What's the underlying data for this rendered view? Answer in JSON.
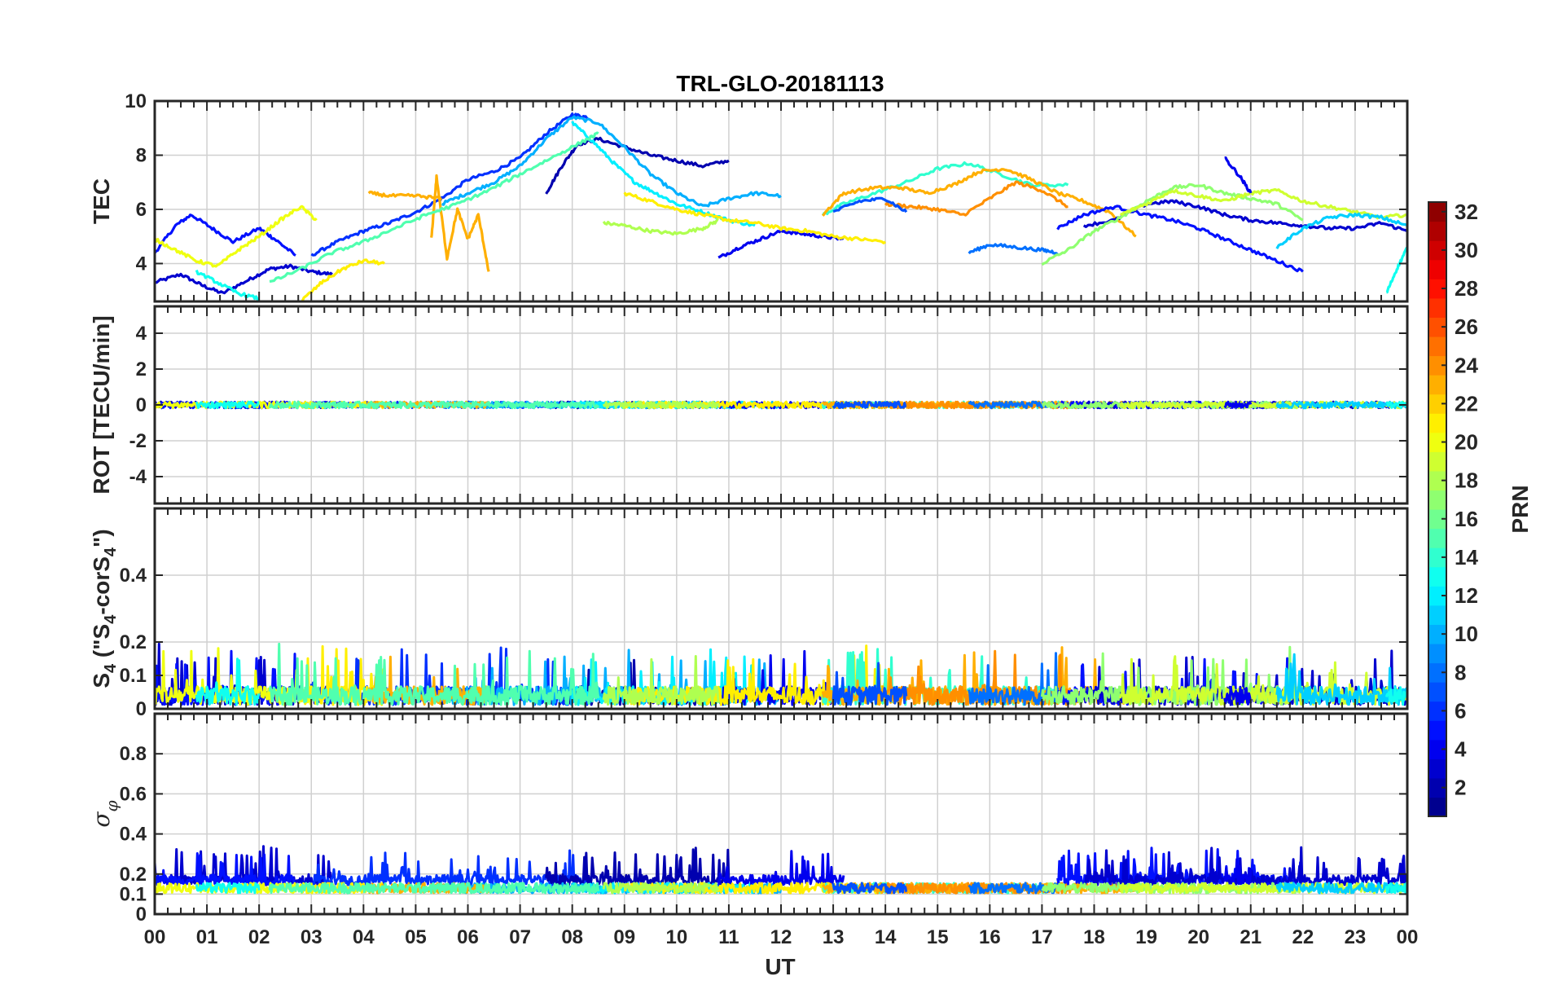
{
  "chart_data": {
    "type": "line",
    "title": "TRL-GLO-20181113",
    "xlabel": "UT",
    "x_ticks": [
      "00",
      "01",
      "02",
      "03",
      "04",
      "05",
      "06",
      "07",
      "08",
      "09",
      "10",
      "11",
      "12",
      "13",
      "14",
      "15",
      "16",
      "17",
      "18",
      "19",
      "20",
      "21",
      "22",
      "23",
      "00"
    ],
    "xlim": [
      0,
      24
    ],
    "grid": true,
    "colorbar": {
      "label": "PRN",
      "colormap": "jet",
      "range": [
        1,
        32
      ],
      "ticks": [
        "2",
        "4",
        "6",
        "8",
        "10",
        "12",
        "14",
        "16",
        "18",
        "20",
        "22",
        "24",
        "26",
        "28",
        "30",
        "32"
      ]
    },
    "panels": [
      {
        "ylabel": "TEC",
        "ylim": [
          2.6,
          10
        ],
        "y_ticks": [
          "4",
          "6",
          "8",
          "10"
        ],
        "series": [
          {
            "prn": 3,
            "x": [
              0,
              0.5,
              0.9,
              1.3,
              1.8,
              2.2,
              2.6,
              3.0,
              3.4
            ],
            "values": [
              3.3,
              3.6,
              3.2,
              2.9,
              3.4,
              3.8,
              3.9,
              3.7,
              3.6
            ]
          },
          {
            "prn": 5,
            "x": [
              0,
              0.4,
              0.7,
              1.1,
              1.5,
              2.0,
              2.3,
              2.7
            ],
            "values": [
              4.4,
              5.4,
              5.8,
              5.3,
              4.8,
              5.3,
              4.9,
              4.3
            ]
          },
          {
            "prn": 6,
            "x": [
              3.0,
              3.5,
              4.0,
              4.5,
              5.0,
              5.5,
              6.0,
              6.5,
              7.0,
              7.5,
              8.0,
              8.3
            ],
            "values": [
              4.3,
              4.8,
              5.2,
              5.5,
              5.9,
              6.4,
              7.1,
              7.4,
              7.9,
              8.8,
              9.5,
              9.4
            ]
          },
          {
            "prn": 2,
            "x": [
              7.5,
              7.8,
              8.1,
              8.5,
              9.0,
              9.5,
              10.0,
              10.5,
              11.0
            ],
            "values": [
              6.6,
              7.6,
              8.4,
              8.6,
              8.3,
              8.0,
              7.8,
              7.6,
              7.8
            ]
          },
          {
            "prn": 10,
            "x": [
              5.5,
              6.0,
              6.5,
              7.0,
              7.5,
              8.0,
              8.5,
              9.0,
              9.5,
              10.0,
              10.5,
              11.0,
              11.5,
              12.0
            ],
            "values": [
              6.2,
              6.6,
              7.0,
              7.6,
              8.6,
              9.4,
              9.2,
              8.3,
              7.3,
              6.6,
              6.1,
              6.4,
              6.6,
              6.5
            ]
          },
          {
            "prn": 12,
            "x": [
              8.0,
              8.4,
              8.8,
              9.2,
              9.6,
              10.0,
              10.5,
              11.0,
              11.5
            ],
            "values": [
              9.2,
              8.5,
              7.7,
              7.0,
              6.6,
              6.2,
              5.9,
              5.6,
              5.4
            ]
          },
          {
            "prn": 4,
            "x": [
              10.8,
              11.2,
              11.6,
              12.0,
              12.4,
              12.8,
              13.2
            ],
            "values": [
              4.2,
              4.6,
              4.9,
              5.2,
              5.1,
              5.0,
              4.9
            ]
          },
          {
            "prn": 21,
            "x": [
              9.0,
              9.5,
              10.0,
              10.5,
              11.0,
              11.5,
              12.0,
              12.5,
              13.0,
              13.5,
              14.0
            ],
            "values": [
              6.6,
              6.3,
              6.0,
              5.8,
              5.6,
              5.5,
              5.3,
              5.2,
              5.0,
              4.9,
              4.8
            ]
          },
          {
            "prn": 18,
            "x": [
              8.6,
              9.0,
              9.5,
              10.0,
              10.5,
              10.8
            ],
            "values": [
              5.5,
              5.4,
              5.2,
              5.1,
              5.3,
              5.6
            ]
          },
          {
            "prn": 14,
            "x": [
              12.8,
              13.2,
              13.8,
              14.4,
              15.0,
              15.6,
              16.2,
              16.8,
              17.5
            ],
            "values": [
              5.8,
              6.2,
              6.6,
              7.0,
              7.5,
              7.7,
              7.3,
              6.9,
              6.9
            ]
          },
          {
            "prn": 23,
            "x": [
              12.8,
              13.2,
              13.8,
              14.3,
              14.8,
              15.3,
              15.8,
              16.3,
              16.8,
              17.3,
              17.8,
              18.3,
              18.8
            ],
            "values": [
              5.8,
              6.6,
              6.8,
              6.8,
              6.6,
              6.9,
              7.4,
              7.5,
              7.1,
              6.6,
              6.3,
              5.9,
              5.0
            ]
          },
          {
            "prn": 24,
            "x": [
              14.0,
              14.5,
              15.0,
              15.5,
              16.0,
              16.5,
              17.0,
              17.5
            ],
            "values": [
              6.2,
              6.1,
              6.0,
              5.8,
              6.4,
              7.0,
              6.7,
              6.1
            ]
          },
          {
            "prn": 7,
            "x": [
              13.0,
              13.5,
              14.0,
              14.4
            ],
            "values": [
              5.9,
              6.3,
              6.4,
              5.9
            ]
          },
          {
            "prn": 8,
            "x": [
              15.6,
              16.0,
              16.5,
              17.0,
              17.3
            ],
            "values": [
              4.4,
              4.7,
              4.6,
              4.5,
              4.4
            ]
          },
          {
            "prn": 5,
            "x": [
              17.3,
              17.8,
              18.4,
              19.0,
              19.5,
              20.0,
              20.5,
              21.0,
              21.5,
              22.0
            ],
            "values": [
              5.3,
              5.8,
              6.1,
              5.8,
              5.6,
              5.3,
              4.9,
              4.5,
              4.1,
              3.7
            ]
          },
          {
            "prn": 3,
            "x": [
              17.8,
              18.4,
              19.0,
              19.5,
              20.0,
              20.5,
              21.0,
              21.5,
              22.0,
              22.5,
              23.0,
              23.5,
              24.0
            ],
            "values": [
              5.4,
              5.6,
              6.2,
              6.3,
              6.1,
              5.8,
              5.6,
              5.5,
              5.4,
              5.3,
              5.3,
              5.5,
              5.2
            ]
          },
          {
            "prn": 17,
            "x": [
              17.0,
              17.5,
              18.0,
              18.5,
              19.0,
              19.5,
              20.0,
              20.5,
              21.0,
              21.5,
              22.0
            ],
            "values": [
              4.0,
              4.5,
              5.2,
              5.7,
              6.3,
              6.8,
              6.9,
              6.6,
              6.4,
              6.2,
              5.6
            ]
          },
          {
            "prn": 19,
            "x": [
              18.5,
              19.0,
              19.5,
              20.0,
              20.5,
              21.0,
              21.5,
              22.0,
              22.5,
              23.0,
              23.5,
              24.0
            ],
            "values": [
              5.8,
              6.2,
              6.7,
              6.5,
              6.3,
              6.6,
              6.7,
              6.3,
              6.1,
              5.9,
              5.7,
              5.8
            ]
          },
          {
            "prn": 4,
            "x": [
              20.5,
              20.8,
              21.0
            ],
            "values": [
              7.9,
              7.2,
              6.6
            ]
          },
          {
            "prn": 11,
            "x": [
              21.5,
              22.0,
              22.5,
              23.0,
              23.5,
              24.0
            ],
            "values": [
              4.6,
              5.3,
              5.7,
              5.8,
              5.7,
              5.4
            ]
          },
          {
            "prn": 13,
            "x": [
              23.6,
              23.8,
              24.0
            ],
            "values": [
              2.9,
              3.8,
              4.6
            ]
          },
          {
            "prn": 20,
            "x": [
              0,
              0.4,
              0.8,
              1.2,
              1.6,
              2.0,
              2.4,
              2.8,
              3.1
            ],
            "values": [
              4.9,
              4.5,
              4.1,
              3.9,
              4.5,
              5.0,
              5.6,
              6.1,
              5.6
            ]
          },
          {
            "prn": 21,
            "x": [
              2.8,
              3.2,
              3.6,
              4.0,
              4.4
            ],
            "values": [
              2.6,
              3.3,
              3.8,
              4.1,
              4.0
            ]
          },
          {
            "prn": 23,
            "x": [
              4.1,
              4.5,
              5.0,
              5.5
            ],
            "values": [
              6.6,
              6.5,
              6.5,
              6.4
            ]
          },
          {
            "prn": 23,
            "x": [
              5.3,
              5.4,
              5.6,
              5.8,
              6.0,
              6.2,
              6.4
            ],
            "values": [
              4.9,
              7.2,
              4.2,
              6.0,
              4.9,
              5.8,
              3.7
            ]
          },
          {
            "prn": 15,
            "x": [
              2.2,
              2.8,
              3.4,
              4.0,
              4.6,
              5.2,
              5.8,
              6.4,
              7.0,
              7.6,
              8.2,
              8.5
            ],
            "values": [
              3.3,
              3.8,
              4.4,
              4.8,
              5.3,
              5.8,
              6.2,
              6.7,
              7.3,
              7.9,
              8.5,
              8.8
            ]
          },
          {
            "prn": 13,
            "x": [
              0.8,
              1.2,
              1.6,
              2.0
            ],
            "values": [
              3.7,
              3.3,
              2.9,
              2.7
            ]
          }
        ]
      },
      {
        "ylabel": "ROT [TECU/min]",
        "ylim": [
          -5.5,
          5.5
        ],
        "y_ticks": [
          "-4",
          "-2",
          "0",
          "2",
          "4"
        ],
        "note_values": "all PRN traces fluctuate within about ±0.3 TECU/min around 0"
      },
      {
        "ylabel": "S4 (\"S4-corS4\")",
        "ylim": [
          0,
          0.6
        ],
        "y_ticks": [
          "0",
          "0.1",
          "0.2",
          "0.4"
        ],
        "typical_range": [
          0.0,
          0.2
        ],
        "max_value": 0.2
      },
      {
        "ylabel": "σφ",
        "ylim": [
          0,
          1
        ],
        "y_ticks": [
          "0",
          "0.1",
          "0.2",
          "0.4",
          "0.6",
          "0.8"
        ],
        "typical_range": [
          0.1,
          0.35
        ],
        "max_value": 0.38
      }
    ]
  }
}
